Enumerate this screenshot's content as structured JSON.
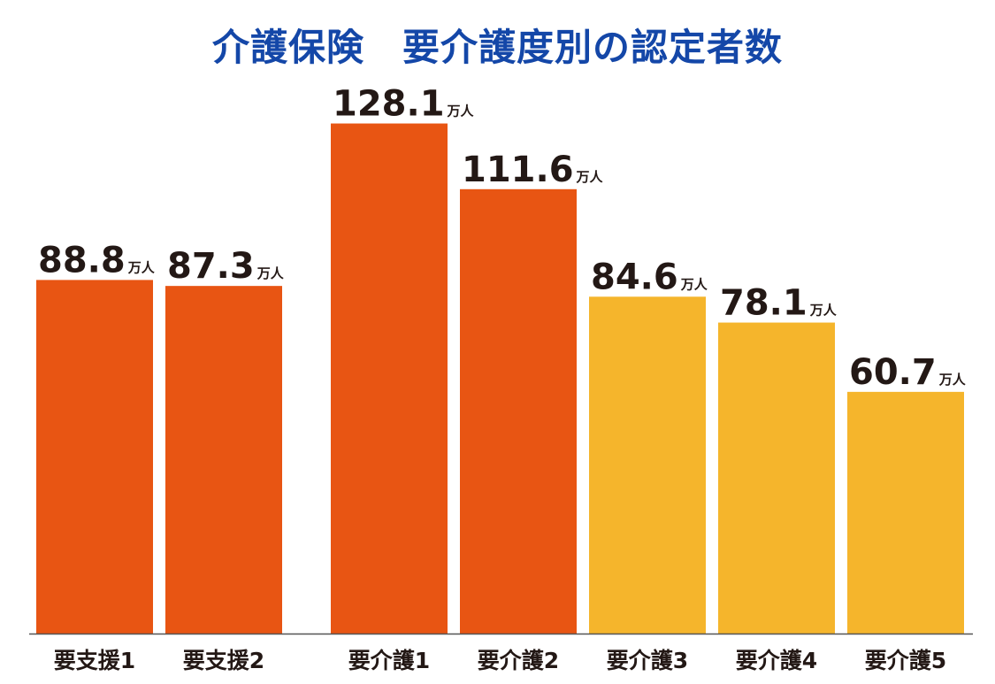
{
  "chart_data": {
    "type": "bar",
    "title": "介護保険　要介護度別の認定者数",
    "unit": "万人",
    "categories": [
      "要支援1",
      "要支援2",
      "要介護1",
      "要介護2",
      "要介護3",
      "要介護4",
      "要介護5"
    ],
    "values": [
      88.8,
      87.3,
      128.1,
      111.6,
      84.6,
      78.1,
      60.7
    ],
    "value_labels": [
      "88.8",
      "87.3",
      "128.1",
      "111.6",
      "84.6",
      "78.1",
      "60.7"
    ],
    "bar_colors": [
      "#e85513",
      "#e85513",
      "#e85513",
      "#e85513",
      "#f5b52c",
      "#f5b52c",
      "#f5b52c"
    ],
    "axis_color": "#555555",
    "xlabel": "",
    "ylabel": "",
    "grid": false,
    "legend": "none"
  }
}
